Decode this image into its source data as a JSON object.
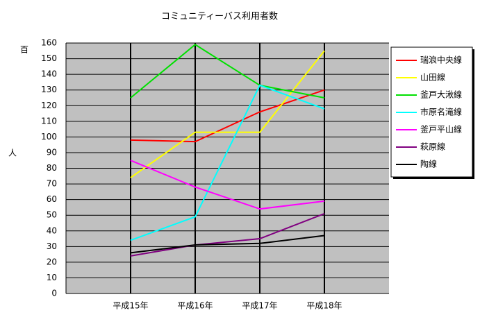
{
  "chart_data": {
    "type": "line",
    "title": "コミュニティーバス利用者数",
    "y_unit": "百",
    "y_label": "人",
    "categories": [
      "平成15年",
      "平成16年",
      "平成17年",
      "平成18年"
    ],
    "series": [
      {
        "name": "瑞浪中央線",
        "color": "#ff0000",
        "values": [
          98,
          97,
          116,
          130
        ]
      },
      {
        "name": "山田線",
        "color": "#ffff00",
        "values": [
          74,
          103,
          103,
          155
        ]
      },
      {
        "name": "釜戸大湫線",
        "color": "#00e000",
        "values": [
          125,
          159,
          133,
          125
        ]
      },
      {
        "name": "市原名滝線",
        "color": "#00ffff",
        "values": [
          34,
          49,
          133,
          118
        ]
      },
      {
        "name": "釜戸平山線",
        "color": "#ff00ff",
        "values": [
          85,
          68,
          54,
          59
        ]
      },
      {
        "name": "萩原線",
        "color": "#800080",
        "values": [
          24,
          31,
          35,
          51
        ]
      },
      {
        "name": "陶線",
        "color": "#000000",
        "values": [
          26,
          31,
          32,
          37
        ]
      }
    ],
    "ylim": [
      0,
      160
    ],
    "yticks": [
      0,
      10,
      20,
      30,
      40,
      50,
      60,
      70,
      80,
      90,
      100,
      110,
      120,
      130,
      140,
      150,
      160
    ],
    "grid": true,
    "legend": "right"
  }
}
